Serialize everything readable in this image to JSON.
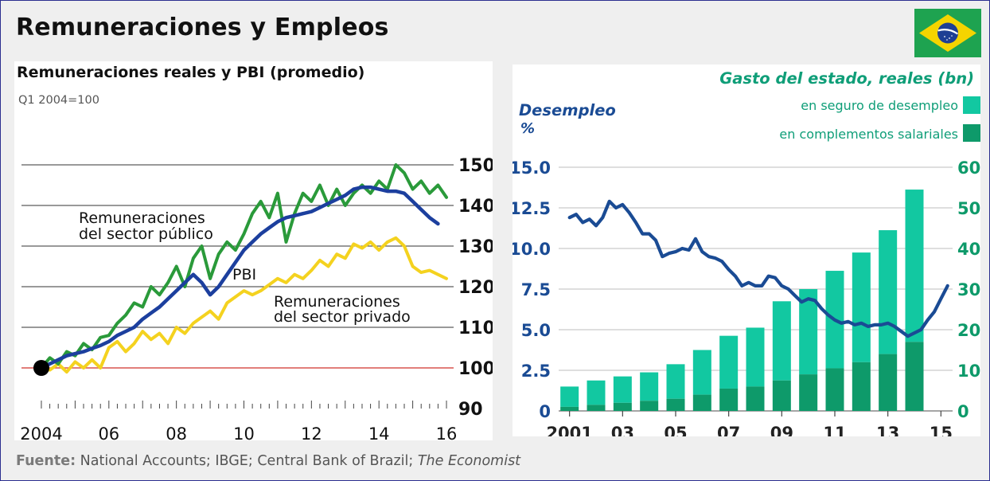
{
  "title": "Remuneraciones y Empleos",
  "flag_icon": "brazil-flag-icon",
  "source": {
    "label": "Fuente:",
    "text": " National Accounts; IBGE; Central Bank of Brazil; ",
    "italic": "The Economist"
  },
  "colors": {
    "pbi": "#1c3f9e",
    "public": "#2a9a3a",
    "private": "#f4d21f",
    "baseline": "#d9534f",
    "unemployment": "#1a4b94",
    "insurance": "#12c8a1",
    "complements": "#0e9a6a",
    "spending_title": "#0f9e78"
  },
  "chart_data": [
    {
      "type": "line",
      "title": "Remuneraciones reales y PBI (promedio)",
      "subtitle": "Q1 2004=100",
      "ylim": [
        90,
        150
      ],
      "yticks": [
        90,
        100,
        110,
        120,
        130,
        140,
        150
      ],
      "xlim": [
        2003.6,
        2016.4
      ],
      "xtick_values": [
        2004,
        2006,
        2008,
        2010,
        2012,
        2014,
        2016
      ],
      "xtick_labels": [
        "2004",
        "06",
        "08",
        "10",
        "12",
        "14",
        "16"
      ],
      "baseline": 100,
      "grid": true,
      "annotations": {
        "public": [
          "Remuneraciones",
          "del sector público"
        ],
        "pbi": [
          "PBI"
        ],
        "private": [
          "Remuneraciones",
          "del sector privado"
        ]
      },
      "series": [
        {
          "key": "pbi",
          "x": [
            2004.0,
            2004.25,
            2004.5,
            2004.75,
            2005.0,
            2005.25,
            2005.5,
            2005.75,
            2006.0,
            2006.25,
            2006.5,
            2006.75,
            2007.0,
            2007.25,
            2007.5,
            2007.75,
            2008.0,
            2008.25,
            2008.5,
            2008.75,
            2009.0,
            2009.25,
            2009.5,
            2009.75,
            2010.0,
            2010.25,
            2010.5,
            2010.75,
            2011.0,
            2011.25,
            2011.5,
            2011.75,
            2012.0,
            2012.25,
            2012.5,
            2012.75,
            2013.0,
            2013.25,
            2013.5,
            2013.75,
            2014.0,
            2014.25,
            2014.5,
            2014.75,
            2015.0,
            2015.25,
            2015.5,
            2015.75
          ],
          "values": [
            100.0,
            101.0,
            102.0,
            103.0,
            103.5,
            104.0,
            104.8,
            105.5,
            106.5,
            108.0,
            109.0,
            110.0,
            112.0,
            113.5,
            115.0,
            117.0,
            119.0,
            121.0,
            123.0,
            121.0,
            118.0,
            120.0,
            123.0,
            126.0,
            129.0,
            131.0,
            133.0,
            134.5,
            136.0,
            137.0,
            137.5,
            138.0,
            138.5,
            139.5,
            140.5,
            141.5,
            142.5,
            144.0,
            144.5,
            144.5,
            144.0,
            143.5,
            143.5,
            143.0,
            141.0,
            139.0,
            137.0,
            135.5
          ]
        },
        {
          "key": "public",
          "x": [
            2004.0,
            2004.25,
            2004.5,
            2004.75,
            2005.0,
            2005.25,
            2005.5,
            2005.75,
            2006.0,
            2006.25,
            2006.5,
            2006.75,
            2007.0,
            2007.25,
            2007.5,
            2007.75,
            2008.0,
            2008.25,
            2008.5,
            2008.75,
            2009.0,
            2009.25,
            2009.5,
            2009.75,
            2010.0,
            2010.25,
            2010.5,
            2010.75,
            2011.0,
            2011.25,
            2011.5,
            2011.75,
            2012.0,
            2012.25,
            2012.5,
            2012.75,
            2013.0,
            2013.25,
            2013.5,
            2013.75,
            2014.0,
            2014.25,
            2014.5,
            2014.75,
            2015.0,
            2015.25,
            2015.5,
            2015.75,
            2016.0
          ],
          "values": [
            100.0,
            102.5,
            101.0,
            104.0,
            103.0,
            106.0,
            104.5,
            107.5,
            108.0,
            111.0,
            113.0,
            116.0,
            115.0,
            120.0,
            118.0,
            121.0,
            125.0,
            120.0,
            127.0,
            130.0,
            122.0,
            128.0,
            131.0,
            129.0,
            133.0,
            138.0,
            141.0,
            137.0,
            143.0,
            131.0,
            138.0,
            143.0,
            141.0,
            145.0,
            140.0,
            144.0,
            140.0,
            143.0,
            145.0,
            143.0,
            146.0,
            144.0,
            150.0,
            148.0,
            144.0,
            146.0,
            143.0,
            145.0,
            142.0
          ]
        },
        {
          "key": "private",
          "x": [
            2004.0,
            2004.25,
            2004.5,
            2004.75,
            2005.0,
            2005.25,
            2005.5,
            2005.75,
            2006.0,
            2006.25,
            2006.5,
            2006.75,
            2007.0,
            2007.25,
            2007.5,
            2007.75,
            2008.0,
            2008.25,
            2008.5,
            2008.75,
            2009.0,
            2009.25,
            2009.5,
            2009.75,
            2010.0,
            2010.25,
            2010.5,
            2010.75,
            2011.0,
            2011.25,
            2011.5,
            2011.75,
            2012.0,
            2012.25,
            2012.5,
            2012.75,
            2013.0,
            2013.25,
            2013.5,
            2013.75,
            2014.0,
            2014.25,
            2014.5,
            2014.75,
            2015.0,
            2015.25,
            2015.5,
            2015.75,
            2016.0
          ],
          "values": [
            100.0,
            99.5,
            101.0,
            99.0,
            101.5,
            100.0,
            102.0,
            100.0,
            105.0,
            106.5,
            104.0,
            106.0,
            109.0,
            107.0,
            108.5,
            106.0,
            110.0,
            108.5,
            111.0,
            112.5,
            114.0,
            112.0,
            116.0,
            117.5,
            119.0,
            118.0,
            119.0,
            120.5,
            122.0,
            121.0,
            123.0,
            122.0,
            124.0,
            126.5,
            125.0,
            128.0,
            127.0,
            130.5,
            129.5,
            131.0,
            129.0,
            131.0,
            132.0,
            130.0,
            125.0,
            123.5,
            124.0,
            123.0,
            122.0
          ]
        }
      ]
    },
    {
      "type": "bar+line",
      "y_left_title": [
        "Desempleo",
        "%"
      ],
      "ylim_left": [
        0,
        15
      ],
      "yticks_left": [
        "0",
        "2.5",
        "5.0",
        "7.5",
        "10.0",
        "12.5",
        "15.0"
      ],
      "ylim_right": [
        0,
        60
      ],
      "yticks_right": [
        "0",
        "10",
        "20",
        "30",
        "40",
        "50",
        "60"
      ],
      "xlim": [
        2000.5,
        2015.5
      ],
      "xtick_values": [
        2001,
        2003,
        2005,
        2007,
        2009,
        2011,
        2013,
        2015
      ],
      "xtick_labels": [
        "2001",
        "03",
        "05",
        "07",
        "09",
        "11",
        "13",
        "15"
      ],
      "grid": true,
      "legend_title": "Gasto del estado, reales (bn)",
      "legend": [
        "en seguro de desempleo",
        "en complementos salariales"
      ],
      "legend_position": "top-right",
      "categories": [
        2001,
        2002,
        2003,
        2004,
        2005,
        2006,
        2007,
        2008,
        2009,
        2010,
        2011,
        2012,
        2013,
        2014
      ],
      "series": [
        {
          "key": "complements",
          "values": [
            1.0,
            1.5,
            2.0,
            2.5,
            3.0,
            4.0,
            5.5,
            6.0,
            7.5,
            9.0,
            10.5,
            12.0,
            14.0,
            17.0
          ]
        },
        {
          "key": "insurance",
          "values": [
            5.0,
            6.0,
            6.5,
            7.0,
            8.5,
            11.0,
            13.0,
            14.5,
            19.5,
            21.0,
            24.0,
            27.0,
            30.5,
            37.5
          ]
        }
      ],
      "line": {
        "key": "unemployment",
        "x": [
          2001.0,
          2001.25,
          2001.5,
          2001.75,
          2002.0,
          2002.25,
          2002.5,
          2002.75,
          2003.0,
          2003.25,
          2003.5,
          2003.75,
          2004.0,
          2004.25,
          2004.5,
          2004.75,
          2005.0,
          2005.25,
          2005.5,
          2005.75,
          2006.0,
          2006.25,
          2006.5,
          2006.75,
          2007.0,
          2007.25,
          2007.5,
          2007.75,
          2008.0,
          2008.25,
          2008.5,
          2008.75,
          2009.0,
          2009.25,
          2009.5,
          2009.75,
          2010.0,
          2010.25,
          2010.5,
          2010.75,
          2011.0,
          2011.25,
          2011.5,
          2011.75,
          2012.0,
          2012.25,
          2012.5,
          2012.75,
          2013.0,
          2013.25,
          2013.5,
          2013.75,
          2014.0,
          2014.25,
          2014.5,
          2014.75,
          2015.0,
          2015.25
        ],
        "values": [
          11.9,
          12.1,
          11.6,
          11.8,
          11.4,
          11.9,
          12.9,
          12.5,
          12.7,
          12.2,
          11.6,
          10.9,
          10.9,
          10.5,
          9.5,
          9.7,
          9.8,
          10.0,
          9.9,
          10.6,
          9.8,
          9.5,
          9.4,
          9.2,
          8.7,
          8.3,
          7.7,
          7.9,
          7.7,
          7.7,
          8.3,
          8.2,
          7.7,
          7.5,
          7.1,
          6.7,
          6.9,
          6.8,
          6.3,
          5.9,
          5.6,
          5.4,
          5.5,
          5.3,
          5.4,
          5.2,
          5.3,
          5.3,
          5.4,
          5.2,
          4.9,
          4.6,
          4.8,
          5.0,
          5.6,
          6.1,
          6.9,
          7.7
        ]
      }
    }
  ]
}
